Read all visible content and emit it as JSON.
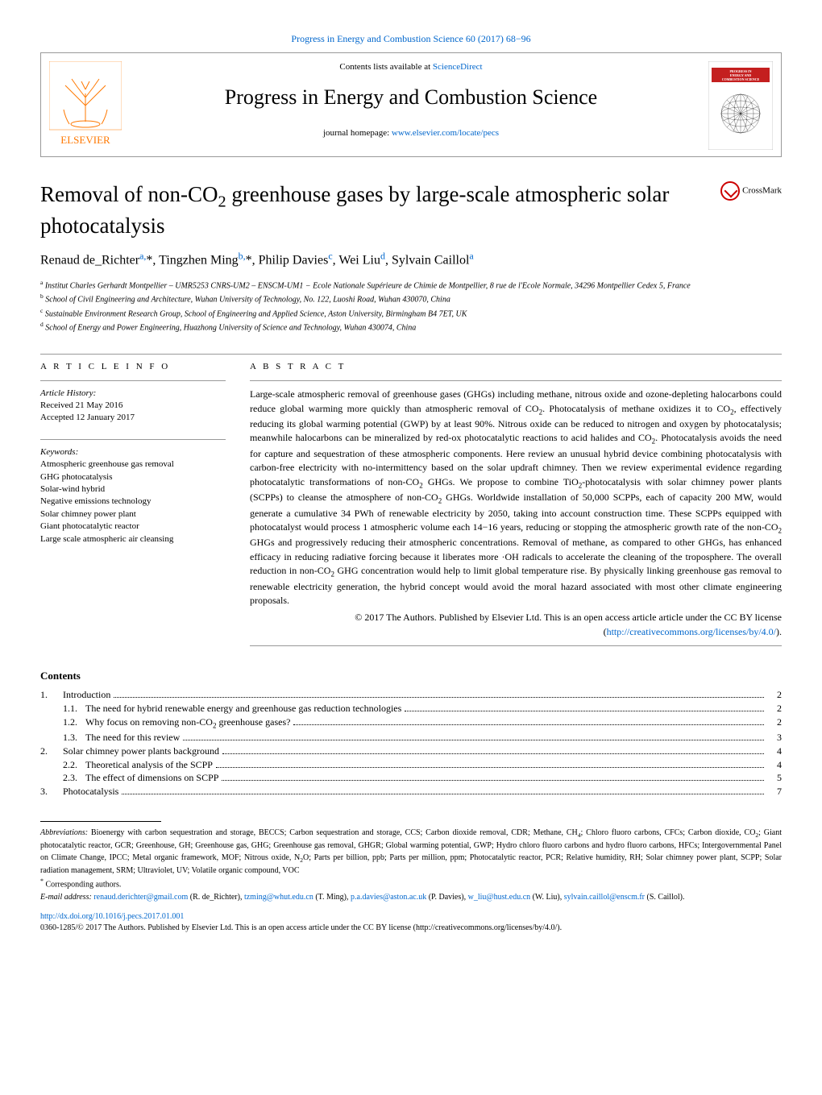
{
  "header": {
    "citation": "Progress in Energy and Combustion Science 60 (2017) 68−96",
    "contents_prefix": "Contents lists available at ",
    "contents_link": "ScienceDirect",
    "journal_name": "Progress in Energy and Combustion Science",
    "homepage_prefix": "journal homepage: ",
    "homepage_link": "www.elsevier.com/locate/pecs",
    "elsevier_alt": "Elsevier",
    "cover_title_lines": [
      "PROGRESS IN",
      "ENERGY AND",
      "COMBUSTION SCIENCE"
    ]
  },
  "article": {
    "title_html": "Removal of non-CO<sub>2</sub> greenhouse gases by large-scale atmospheric solar photocatalysis",
    "crossmark_label": "CrossMark"
  },
  "authors_html": "Renaud de_Richter<a href='#'><sup>a,</sup></a>*, Tingzhen Ming<a href='#'><sup>b,</sup></a>*, Philip Davies<a href='#'><sup>c</sup></a>, Wei Liu<a href='#'><sup>d</sup></a>, Sylvain Caillol<a href='#'><sup>a</sup></a>",
  "affiliations": [
    {
      "sup": "a",
      "text": "Institut Charles Gerhardt Montpellier – UMR5253 CNRS-UM2 – ENSCM-UM1 − Ecole Nationale Supérieure de Chimie de Montpellier, 8 rue de l'Ecole Normale, 34296 Montpellier Cedex 5, France"
    },
    {
      "sup": "b",
      "text": "School of Civil Engineering and Architecture, Wuhan University of Technology, No. 122, Luoshi Road, Wuhan 430070, China"
    },
    {
      "sup": "c",
      "text": "Sustainable Environment Research Group, School of Engineering and Applied Science, Aston University, Birmingham B4 7ET, UK"
    },
    {
      "sup": "d",
      "text": "School of Energy and Power Engineering, Huazhong University of Science and Technology, Wuhan 430074, China"
    }
  ],
  "info": {
    "heading": "A R T I C L E   I N F O",
    "history_label": "Article History:",
    "received": "Received 21 May 2016",
    "accepted": "Accepted 12 January 2017",
    "keywords_label": "Keywords:",
    "keywords": [
      "Atmospheric greenhouse gas removal",
      "GHG photocatalysis",
      "Solar-wind hybrid",
      "Negative emissions technology",
      "Solar chimney power plant",
      "Giant photocatalytic reactor",
      "Large scale atmospheric air cleansing"
    ]
  },
  "abstract": {
    "heading": "A B S T R A C T",
    "body_html": "Large-scale atmospheric removal of greenhouse gases (GHGs) including methane, nitrous oxide and ozone-depleting halocarbons could reduce global warming more quickly than atmospheric removal of CO<sub>2</sub>. Photocatalysis of methane oxidizes it to CO<sub>2</sub>, effectively reducing its global warming potential (GWP) by at least 90%. Nitrous oxide can be reduced to nitrogen and oxygen by photocatalysis; meanwhile halocarbons can be mineralized by red-ox photocatalytic reactions to acid halides and CO<sub>2</sub>. Photocatalysis avoids the need for capture and sequestration of these atmospheric components. Here review an unusual hybrid device combining photocatalysis with carbon-free electricity with no-intermittency based on the solar updraft chimney. Then we review experimental evidence regarding photocatalytic transformations of non-CO<sub>2</sub> GHGs. We propose to combine TiO<sub>2</sub>-photocatalysis with solar chimney power plants (SCPPs) to cleanse the atmosphere of non-CO<sub>2</sub> GHGs. Worldwide installation of 50,000 SCPPs, each of capacity 200 MW, would generate a cumulative 34 PWh of renewable electricity by 2050, taking into account construction time. These SCPPs equipped with photocatalyst would process 1 atmospheric volume each 14−16 years, reducing or stopping the atmospheric growth rate of the non-CO<sub>2</sub> GHGs and progressively reducing their atmospheric concentrations. Removal of methane, as compared to other GHGs, has enhanced efficacy in reducing radiative forcing because it liberates more ·OH radicals to accelerate the cleaning of the troposphere. The overall reduction in non-CO<sub>2</sub> GHG concentration would help to limit global temperature rise. By physically linking greenhouse gas removal to renewable electricity generation, the hybrid concept would avoid the moral hazard associated with most other climate engineering proposals.",
    "license_line": "© 2017 The Authors. Published by Elsevier Ltd. This is an open access article article under the CC BY license",
    "license_link_text": "http://creativecommons.org/licenses/by/4.0/"
  },
  "contents": {
    "title": "Contents",
    "items": [
      {
        "level": 1,
        "num": "1.",
        "label": "Introduction",
        "page": "2"
      },
      {
        "level": 2,
        "num": "1.1.",
        "label": "The need for hybrid renewable energy and greenhouse gas reduction technologies",
        "page": "2"
      },
      {
        "level": 2,
        "num": "1.2.",
        "label_html": "Why focus on removing non-CO<sub>2</sub> greenhouse gases?",
        "page": "2"
      },
      {
        "level": 2,
        "num": "1.3.",
        "label": "The need for this review",
        "page": "3"
      },
      {
        "level": 1,
        "num": "2.",
        "label": "Solar chimney power plants background",
        "page": "4"
      },
      {
        "level": 2,
        "num": "2.2.",
        "label": "Theoretical analysis of the SCPP",
        "page": "4"
      },
      {
        "level": 2,
        "num": "2.3.",
        "label": "The effect of dimensions on SCPP",
        "page": "5"
      },
      {
        "level": 1,
        "num": "3.",
        "label": "Photocatalysis",
        "page": "7"
      }
    ]
  },
  "footer": {
    "abbrev_label": "Abbreviations:",
    "abbrev_text_html": " Bioenergy with carbon sequestration and storage, BECCS; Carbon sequestration and storage, CCS; Carbon dioxide removal, CDR; Methane, CH<sub>4</sub>; Chloro fluoro carbons, CFCs; Carbon dioxide, CO<sub>2</sub>; Giant photocatalytic reactor, GCR; Greenhouse, GH; Greenhouse gas, GHG; Greenhouse gas removal, GHGR; Global warming potential, GWP; Hydro chloro fluoro carbons and hydro fluoro carbons, HFCs; Intergovernmental Panel on Climate Change, IPCC; Metal organic framework, MOF; Nitrous oxide, N<sub>2</sub>O; Parts per billion, ppb; Parts per million, ppm; Photocatalytic reactor, PCR; Relative humidity, RH; Solar chimney power plant, SCPP; Solar radiation management, SRM; Ultraviolet, UV; Volatile organic compound, VOC",
    "corr_label": "Corresponding authors.",
    "email_label": "E-mail address:",
    "emails_html": " <a href='#'>renaud.derichter@gmail.com</a> (R. de_Richter), <a href='#'>tzming@whut.edu.cn</a> (T. Ming), <a href='#'>p.a.davies@aston.ac.uk</a> (P. Davies), <a href='#'>w_liu@hust.edu.cn</a> (W. Liu), <a href='#'>sylvain.caillol@enscm.fr</a> (S. Caillol).",
    "doi": "http://dx.doi.org/10.1016/j.pecs.2017.01.001",
    "copyright": "0360-1285/© 2017 The Authors. Published by Elsevier Ltd. This is an open access article under the CC BY license (http://creativecommons.org/licenses/by/4.0/)."
  },
  "colors": {
    "link": "#0066cc",
    "elsevier_orange": "#ff7800",
    "cover_red": "#c41f1f"
  }
}
